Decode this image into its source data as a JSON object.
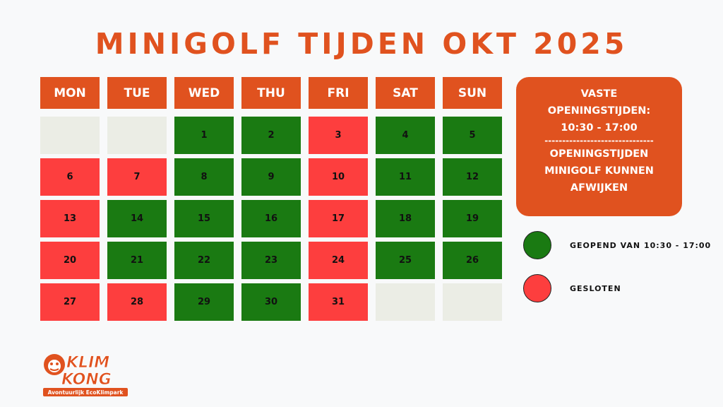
{
  "title": "MINIGOLF TIJDEN OKT 2025",
  "colors": {
    "accent": "#e0521f",
    "open": "#1a7a12",
    "closed": "#fd3e3e",
    "empty": "#ebede5"
  },
  "weekdays": [
    "MON",
    "TUE",
    "WED",
    "THU",
    "FRI",
    "SAT",
    "SUN"
  ],
  "weeks": [
    [
      {
        "day": "",
        "status": "empty"
      },
      {
        "day": "",
        "status": "empty"
      },
      {
        "day": "1",
        "status": "open"
      },
      {
        "day": "2",
        "status": "open"
      },
      {
        "day": "3",
        "status": "closed"
      },
      {
        "day": "4",
        "status": "open"
      },
      {
        "day": "5",
        "status": "open"
      }
    ],
    [
      {
        "day": "6",
        "status": "closed"
      },
      {
        "day": "7",
        "status": "closed"
      },
      {
        "day": "8",
        "status": "open"
      },
      {
        "day": "9",
        "status": "open"
      },
      {
        "day": "10",
        "status": "closed"
      },
      {
        "day": "11",
        "status": "open"
      },
      {
        "day": "12",
        "status": "open"
      }
    ],
    [
      {
        "day": "13",
        "status": "closed"
      },
      {
        "day": "14",
        "status": "open"
      },
      {
        "day": "15",
        "status": "open"
      },
      {
        "day": "16",
        "status": "open"
      },
      {
        "day": "17",
        "status": "closed"
      },
      {
        "day": "18",
        "status": "open"
      },
      {
        "day": "19",
        "status": "open"
      }
    ],
    [
      {
        "day": "20",
        "status": "closed"
      },
      {
        "day": "21",
        "status": "open"
      },
      {
        "day": "22",
        "status": "open"
      },
      {
        "day": "23",
        "status": "open"
      },
      {
        "day": "24",
        "status": "closed"
      },
      {
        "day": "25",
        "status": "open"
      },
      {
        "day": "26",
        "status": "open"
      }
    ],
    [
      {
        "day": "27",
        "status": "closed"
      },
      {
        "day": "28",
        "status": "closed"
      },
      {
        "day": "29",
        "status": "open"
      },
      {
        "day": "30",
        "status": "open"
      },
      {
        "day": "31",
        "status": "closed"
      },
      {
        "day": "",
        "status": "empty"
      },
      {
        "day": "",
        "status": "empty"
      }
    ]
  ],
  "info": {
    "line1": "VASTE",
    "line2": "OPENINGSTIJDEN:",
    "line3": "10:30 - 17:00",
    "divider": "-------------------------------",
    "line4": "OPENINGSTIJDEN",
    "line5": "MINIGOLF KUNNEN",
    "line6": "AFWIJKEN"
  },
  "legend": {
    "open_label": "GEOPEND VAN 10:30 - 17:00",
    "closed_label": "GESLOTEN"
  },
  "logo": {
    "line1": "KLIM",
    "line2": "KONG",
    "tagline": "Avontuurlijk EcoKlimpark"
  }
}
